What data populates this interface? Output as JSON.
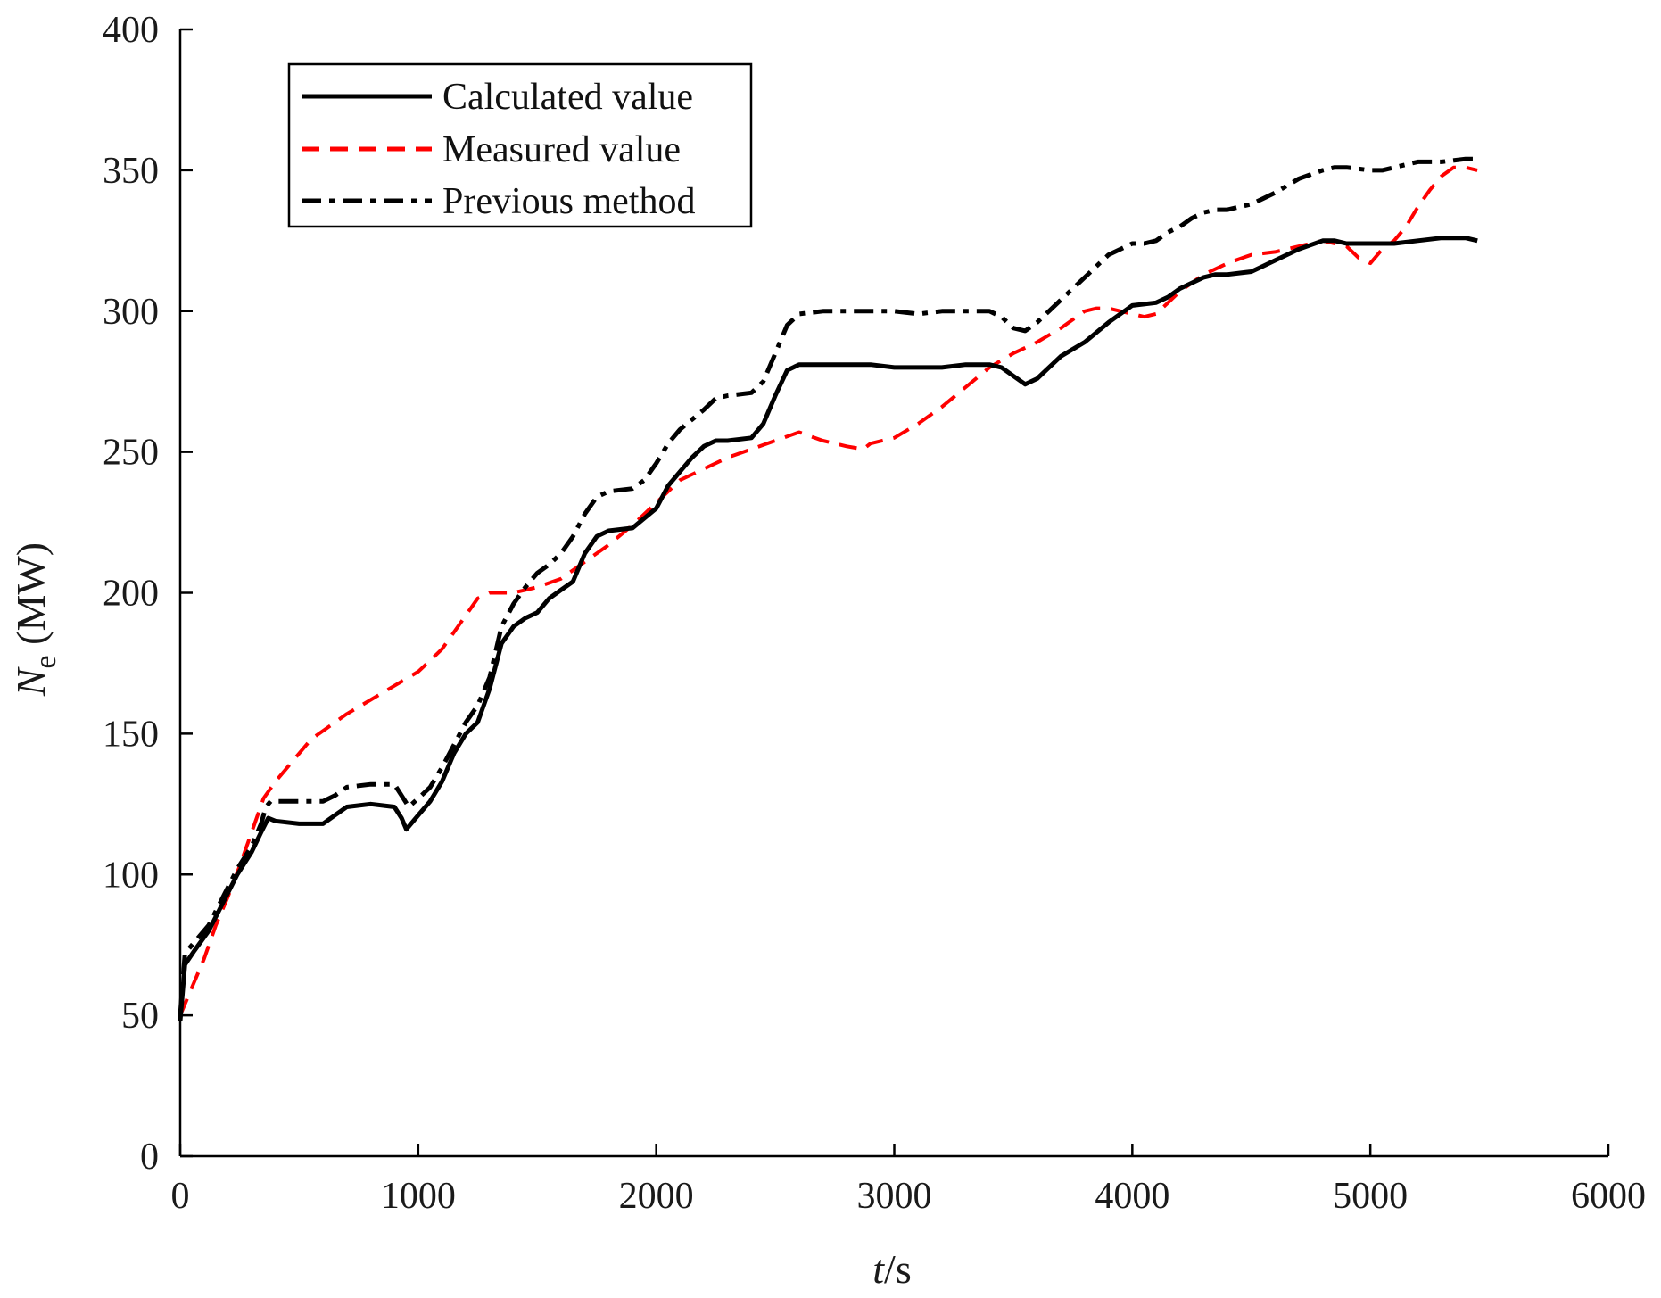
{
  "chart_data": {
    "type": "line",
    "title": "",
    "xlabel": {
      "var": "t",
      "unit": "/s"
    },
    "ylabel": {
      "var": "N",
      "sub": "e",
      "unit": " (MW)"
    },
    "xlim": [
      0,
      6000
    ],
    "ylim": [
      0,
      400
    ],
    "xticks": [
      0,
      1000,
      2000,
      3000,
      4000,
      5000,
      6000
    ],
    "yticks": [
      0,
      50,
      100,
      150,
      200,
      250,
      300,
      350,
      400
    ],
    "grid": false,
    "legend_position": "top-left",
    "series": [
      {
        "name": "Calculated value",
        "color": "#000000",
        "style": "solid",
        "x": [
          0,
          20,
          60,
          120,
          180,
          240,
          300,
          340,
          370,
          400,
          500,
          600,
          650,
          700,
          800,
          900,
          930,
          950,
          1000,
          1050,
          1100,
          1150,
          1200,
          1250,
          1300,
          1350,
          1400,
          1450,
          1500,
          1550,
          1600,
          1650,
          1700,
          1750,
          1800,
          1900,
          2000,
          2050,
          2100,
          2150,
          2200,
          2250,
          2300,
          2400,
          2450,
          2500,
          2550,
          2600,
          2700,
          2800,
          2900,
          3000,
          3100,
          3200,
          3300,
          3400,
          3450,
          3500,
          3550,
          3600,
          3650,
          3700,
          3800,
          3900,
          3950,
          4000,
          4100,
          4150,
          4200,
          4300,
          4350,
          4400,
          4500,
          4550,
          4600,
          4700,
          4800,
          4850,
          4900,
          5000,
          5100,
          5200,
          5300,
          5400,
          5450
        ],
        "y": [
          48,
          68,
          73,
          80,
          90,
          100,
          108,
          115,
          120,
          119,
          118,
          118,
          121,
          124,
          125,
          124,
          120,
          116,
          121,
          126,
          133,
          143,
          150,
          154,
          166,
          182,
          188,
          191,
          193,
          198,
          201,
          204,
          214,
          220,
          222,
          223,
          230,
          238,
          243,
          248,
          252,
          254,
          254,
          255,
          260,
          270,
          279,
          281,
          281,
          281,
          281,
          280,
          280,
          280,
          281,
          281,
          280,
          277,
          274,
          276,
          280,
          284,
          289,
          296,
          299,
          302,
          303,
          305,
          308,
          312,
          313,
          313,
          314,
          316,
          318,
          322,
          325,
          325,
          324,
          324,
          324,
          325,
          326,
          326,
          325
        ]
      },
      {
        "name": "Measured value",
        "color": "#ff0000",
        "style": "dashed",
        "x": [
          0,
          50,
          100,
          150,
          200,
          250,
          300,
          350,
          400,
          450,
          500,
          550,
          600,
          700,
          800,
          900,
          1000,
          1050,
          1100,
          1150,
          1200,
          1250,
          1300,
          1400,
          1500,
          1600,
          1700,
          1800,
          1900,
          2000,
          2100,
          2200,
          2300,
          2400,
          2500,
          2600,
          2700,
          2800,
          2870,
          2900,
          3000,
          3100,
          3200,
          3300,
          3400,
          3500,
          3600,
          3700,
          3750,
          3800,
          3850,
          3900,
          4000,
          4050,
          4100,
          4150,
          4200,
          4300,
          4400,
          4500,
          4600,
          4700,
          4800,
          4900,
          4950,
          5000,
          5050,
          5100,
          5150,
          5200,
          5250,
          5300,
          5350,
          5400,
          5450
        ],
        "y": [
          50,
          60,
          70,
          82,
          92,
          103,
          115,
          127,
          133,
          138,
          143,
          148,
          151,
          157,
          162,
          167,
          172,
          176,
          180,
          186,
          192,
          198,
          200,
          200,
          202,
          205,
          211,
          217,
          224,
          232,
          240,
          244,
          248,
          251,
          254,
          257,
          254,
          252,
          251,
          253,
          255,
          260,
          266,
          273,
          280,
          285,
          289,
          294,
          297,
          300,
          301,
          301,
          299,
          298,
          299,
          303,
          307,
          313,
          317,
          320,
          321,
          323,
          325,
          323,
          319,
          317,
          322,
          325,
          330,
          337,
          343,
          348,
          351,
          351,
          350
        ]
      },
      {
        "name": "Previous method",
        "color": "#000000",
        "style": "dashdot",
        "x": [
          0,
          20,
          60,
          120,
          180,
          240,
          300,
          340,
          360,
          380,
          400,
          500,
          600,
          650,
          700,
          800,
          900,
          930,
          960,
          1000,
          1050,
          1100,
          1150,
          1200,
          1250,
          1300,
          1350,
          1400,
          1450,
          1500,
          1550,
          1600,
          1650,
          1700,
          1750,
          1800,
          1900,
          1950,
          2000,
          2050,
          2100,
          2200,
          2250,
          2300,
          2400,
          2450,
          2500,
          2550,
          2600,
          2700,
          2800,
          2900,
          3000,
          3100,
          3200,
          3300,
          3400,
          3450,
          3500,
          3550,
          3600,
          3650,
          3700,
          3800,
          3900,
          4000,
          4050,
          4100,
          4150,
          4200,
          4250,
          4300,
          4350,
          4400,
          4500,
          4550,
          4600,
          4700,
          4800,
          4850,
          4900,
          5000,
          5050,
          5100,
          5200,
          5300,
          5400,
          5450
        ],
        "y": [
          50,
          72,
          76,
          82,
          92,
          102,
          110,
          118,
          124,
          126,
          126,
          126,
          126,
          128,
          131,
          132,
          132,
          128,
          124,
          127,
          131,
          138,
          146,
          154,
          160,
          170,
          188,
          196,
          202,
          207,
          210,
          214,
          220,
          228,
          234,
          236,
          237,
          240,
          246,
          253,
          258,
          265,
          269,
          270,
          271,
          275,
          285,
          295,
          299,
          300,
          300,
          300,
          300,
          299,
          300,
          300,
          300,
          298,
          294,
          293,
          296,
          300,
          304,
          312,
          320,
          324,
          324,
          325,
          328,
          330,
          333,
          335,
          336,
          336,
          338,
          340,
          342,
          347,
          350,
          351,
          351,
          350,
          350,
          351,
          353,
          353,
          354,
          354
        ]
      }
    ]
  }
}
